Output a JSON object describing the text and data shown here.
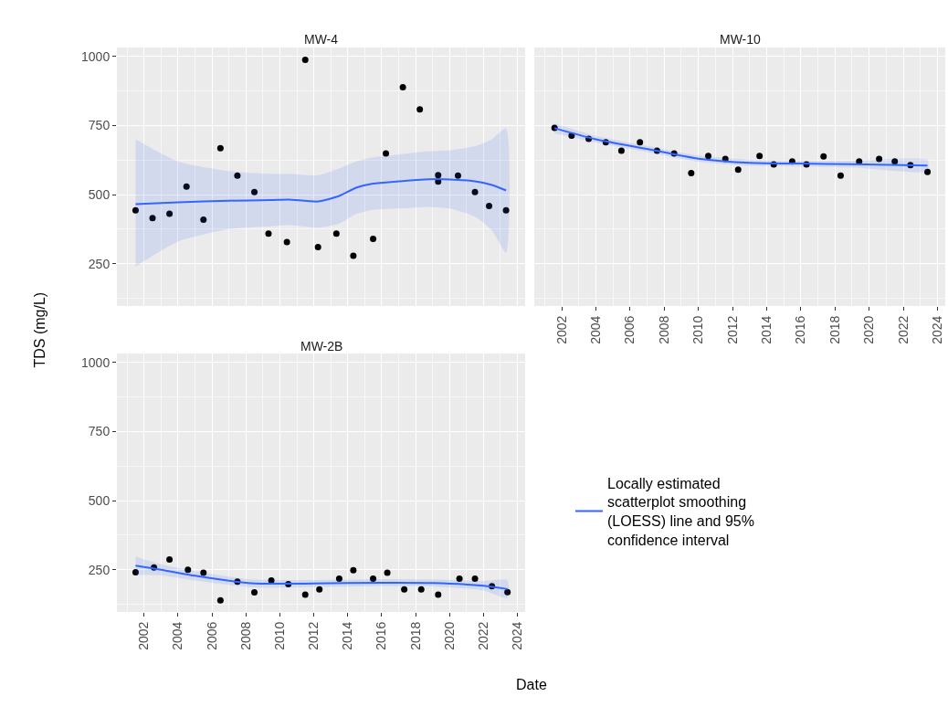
{
  "chart_data": [
    {
      "type": "scatter",
      "title": "MW-4",
      "ylabel": "TDS (mg/L)",
      "xlim": [
        "2000-05-25",
        "2024-06-15"
      ],
      "xticks": [
        "2002",
        "2004",
        "2006",
        "2008",
        "2010",
        "2012",
        "2014",
        "2016",
        "2018",
        "2020",
        "2022",
        "2024"
      ],
      "ylim": [
        97,
        1032
      ],
      "yticks": [
        250,
        500,
        750,
        1000
      ],
      "grid": true,
      "tick_labels": "y",
      "series": [
        {
          "marker": "circle",
          "color": "#000000",
          "x": [
            "2001-07",
            "2002-07",
            "2003-07",
            "2004-07",
            "2005-07",
            "2006-07",
            "2007-07",
            "2008-07",
            "2009-05",
            "2010-06",
            "2011-07",
            "2012-04",
            "2013-05",
            "2014-05",
            "2015-07",
            "2016-04",
            "2017-04",
            "2018-04",
            "2019-05",
            "2019-05",
            "2020-07",
            "2021-07",
            "2022-05",
            "2023-05"
          ],
          "values": [
            443,
            415,
            431,
            529,
            409,
            668,
            569,
            509,
            359,
            328,
            987,
            310,
            359,
            279,
            340,
            649,
            888,
            808,
            570,
            547,
            569,
            509,
            459,
            443
          ]
        },
        {
          "type": "line",
          "color": "#3366ff",
          "x": [
            "2001-07",
            "2004-01",
            "2007-01",
            "2009-07",
            "2010-07",
            "2012-04",
            "2013-07",
            "2014-07",
            "2015-07",
            "2017-01",
            "2018-07",
            "2020-01",
            "2021-07",
            "2022-07",
            "2023-05"
          ],
          "values": [
            465,
            472,
            478,
            480,
            482,
            475,
            495,
            525,
            540,
            548,
            555,
            555,
            548,
            535,
            515
          ],
          "lower": [
            240,
            330,
            375,
            385,
            390,
            380,
            395,
            430,
            445,
            450,
            455,
            450,
            420,
            370,
            290
          ],
          "upper": [
            700,
            620,
            585,
            575,
            575,
            570,
            595,
            620,
            635,
            645,
            655,
            660,
            675,
            700,
            740
          ]
        }
      ]
    },
    {
      "type": "scatter",
      "title": "MW-10",
      "xlim": [
        "2000-05-25",
        "2024-06-15"
      ],
      "xticks": [
        "2002",
        "2004",
        "2006",
        "2008",
        "2010",
        "2012",
        "2014",
        "2016",
        "2018",
        "2020",
        "2022",
        "2024"
      ],
      "ylim": [
        97,
        1032
      ],
      "yticks": [
        250,
        500,
        750,
        1000
      ],
      "grid": true,
      "tick_labels": "x",
      "series": [
        {
          "marker": "circle",
          "color": "#000000",
          "x": [
            "2001-08",
            "2002-08",
            "2003-08",
            "2004-08",
            "2005-07",
            "2006-08",
            "2007-08",
            "2008-08",
            "2009-08",
            "2010-08",
            "2011-08",
            "2012-05",
            "2013-08",
            "2014-06",
            "2015-07",
            "2016-05",
            "2017-05",
            "2018-05",
            "2019-06",
            "2020-08",
            "2021-07",
            "2022-06",
            "2023-06"
          ],
          "values": [
            741,
            713,
            702,
            689,
            659,
            689,
            659,
            649,
            578,
            640,
            629,
            590,
            640,
            609,
            620,
            609,
            638,
            569,
            620,
            629,
            620,
            607,
            582
          ]
        },
        {
          "type": "line",
          "color": "#3366ff",
          "x": [
            "2001-08",
            "2004-01",
            "2007-01",
            "2010-01",
            "2013-01",
            "2016-01",
            "2019-01",
            "2023-06"
          ],
          "values": [
            740,
            700,
            665,
            630,
            615,
            612,
            610,
            605
          ],
          "lower": [
            722,
            688,
            654,
            619,
            604,
            601,
            598,
            585
          ],
          "upper": [
            758,
            712,
            676,
            641,
            626,
            623,
            622,
            625
          ]
        }
      ]
    },
    {
      "type": "scatter",
      "title": "MW-2B",
      "xlabel": "Date",
      "xlim": [
        "2000-05-25",
        "2024-06-15"
      ],
      "xticks": [
        "2002",
        "2004",
        "2006",
        "2008",
        "2010",
        "2012",
        "2014",
        "2016",
        "2018",
        "2020",
        "2022",
        "2024"
      ],
      "ylim": [
        97,
        1032
      ],
      "yticks": [
        250,
        500,
        750,
        1000
      ],
      "grid": true,
      "legend": "right",
      "series": [
        {
          "marker": "circle",
          "color": "#000000",
          "x": [
            "2001-07",
            "2002-08",
            "2003-07",
            "2004-08",
            "2005-07",
            "2006-07",
            "2007-07",
            "2008-07",
            "2009-07",
            "2010-07",
            "2011-07",
            "2012-05",
            "2013-07",
            "2014-05",
            "2015-07",
            "2016-05",
            "2017-05",
            "2018-05",
            "2019-05",
            "2020-08",
            "2021-07",
            "2022-07",
            "2023-06"
          ],
          "values": [
            241,
            258,
            287,
            250,
            239,
            139,
            207,
            168,
            211,
            198,
            160,
            179,
            218,
            248,
            218,
            239,
            179,
            179,
            160,
            218,
            218,
            190,
            169
          ]
        },
        {
          "type": "line",
          "name": "Locally estimated scatterplot smoothing (LOESS) line and 95% confidence interval",
          "color": "#3366ff",
          "x": [
            "2001-07",
            "2003-01",
            "2005-01",
            "2007-01",
            "2008-07",
            "2012-01",
            "2016-01",
            "2019-01",
            "2022-01",
            "2023-06"
          ],
          "values": [
            265,
            250,
            228,
            210,
            200,
            200,
            203,
            202,
            192,
            180
          ],
          "lower": [
            232,
            230,
            211,
            195,
            186,
            187,
            190,
            189,
            175,
            148
          ],
          "upper": [
            298,
            270,
            245,
            225,
            214,
            213,
            216,
            215,
            209,
            212
          ]
        }
      ]
    }
  ]
}
